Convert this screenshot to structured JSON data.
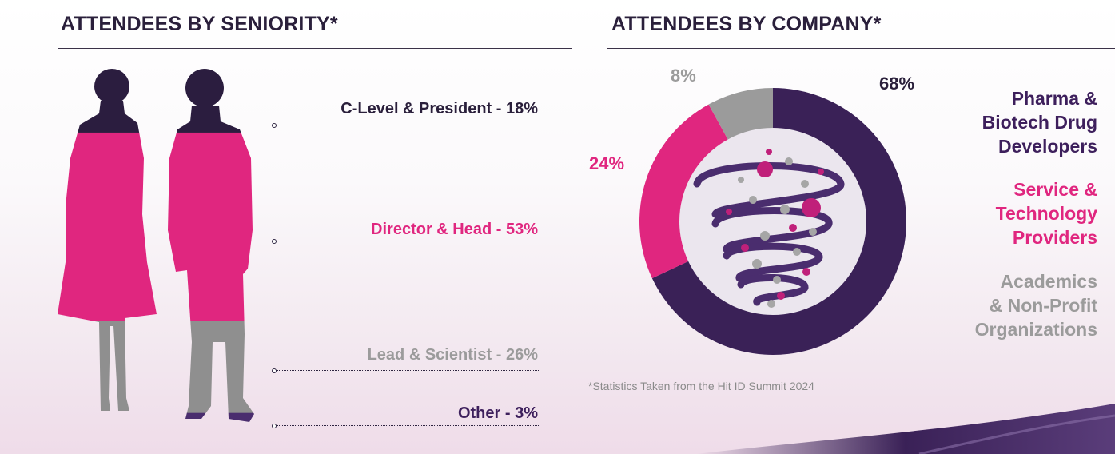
{
  "left": {
    "heading": "ATTENDEES BY SENIORITY*"
  },
  "right": {
    "heading": "ATTENDEES BY COMPANY*",
    "legend": {
      "pharma": [
        "Pharma &",
        "Biotech Drug",
        "Developers"
      ],
      "service": [
        "Service &",
        "Technology",
        "Providers"
      ],
      "academics": [
        "Academics",
        "& Non-Profit",
        "Organizations"
      ]
    },
    "footnote": "*Statistics Taken from the Hit ID Summit 2024"
  },
  "colors": {
    "dark": "#3a2157",
    "magenta": "#e0267f",
    "gray": "#9b9b9b",
    "text_dark": "#3d1f5c"
  },
  "chart_data": [
    {
      "type": "bar",
      "title": "ATTENDEES BY SENIORITY*",
      "categories": [
        "C-Level & President",
        "Director & Head",
        "Lead & Scientist",
        "Other"
      ],
      "values": [
        18,
        53,
        26,
        3
      ],
      "labels": [
        "C-Level & President - 18%",
        "Director & Head - 53%",
        "Lead & Scientist - 26%",
        "Other - 3%"
      ],
      "unit": "%"
    },
    {
      "type": "pie",
      "title": "ATTENDEES BY COMPANY*",
      "categories": [
        "Pharma & Biotech Drug Developers",
        "Service & Technology Providers",
        "Academics & Non-Profit Organizations"
      ],
      "values": [
        68,
        24,
        8
      ],
      "labels": [
        "68%",
        "24%",
        "8%"
      ],
      "unit": "%"
    }
  ]
}
